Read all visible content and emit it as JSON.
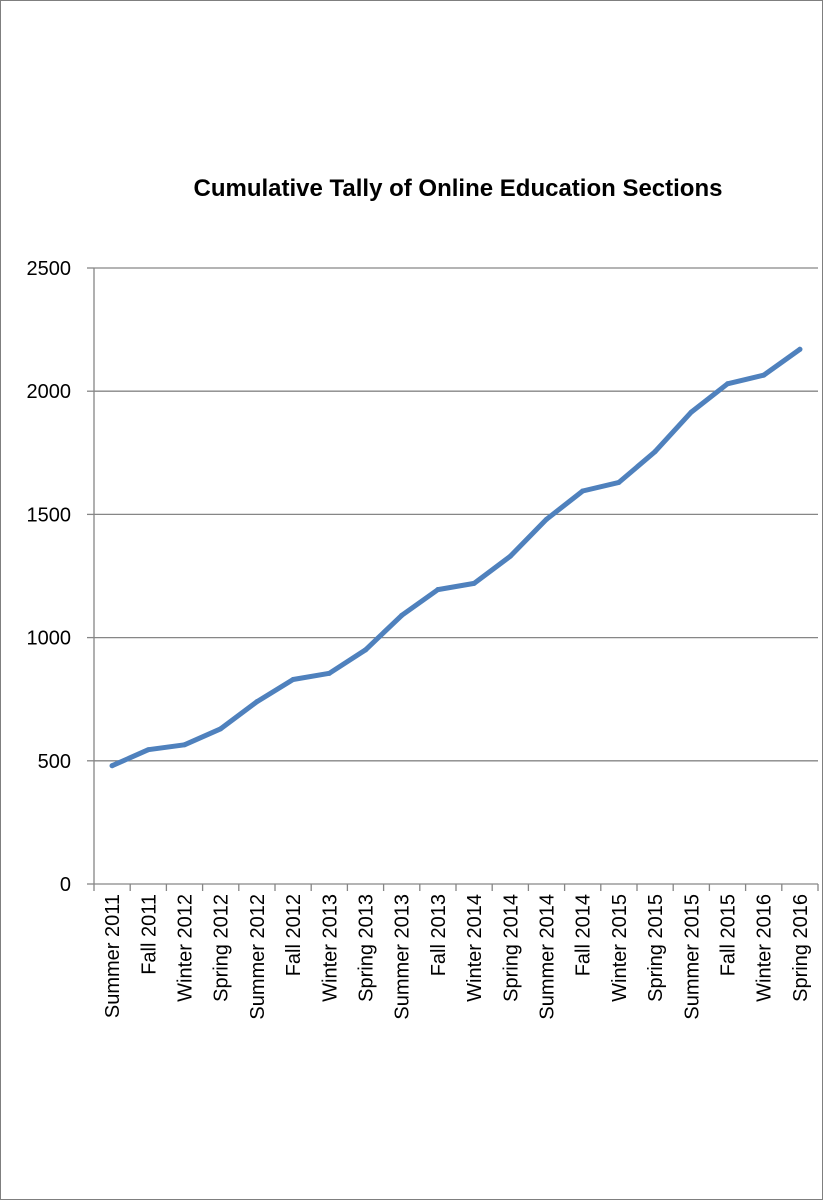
{
  "chart_data": {
    "type": "line",
    "title": "Cumulative Tally of Online Education Sections",
    "xlabel": "",
    "ylabel": "",
    "categories": [
      "Summer 2011",
      "Fall 2011",
      "Winter 2012",
      "Spring 2012",
      "Summer 2012",
      "Fall 2012",
      "Winter 2013",
      "Spring 2013",
      "Summer 2013",
      "Fall 2013",
      "Winter 2014",
      "Spring 2014",
      "Summer 2014",
      "Fall 2014",
      "Winter 2015",
      "Spring 2015",
      "Summer 2015",
      "Fall 2015",
      "Winter 2016",
      "Spring 2016"
    ],
    "series": [
      {
        "values": [
          480,
          545,
          565,
          630,
          740,
          830,
          855,
          950,
          1090,
          1195,
          1220,
          1330,
          1480,
          1595,
          1630,
          1755,
          1915,
          2030,
          2065,
          2170
        ],
        "color": "#4f81bd"
      }
    ],
    "ylim": [
      0,
      2500
    ],
    "yticks": [
      "0",
      "500",
      "1000",
      "1500",
      "2000",
      "2500"
    ],
    "grid": true,
    "legend": "none"
  }
}
